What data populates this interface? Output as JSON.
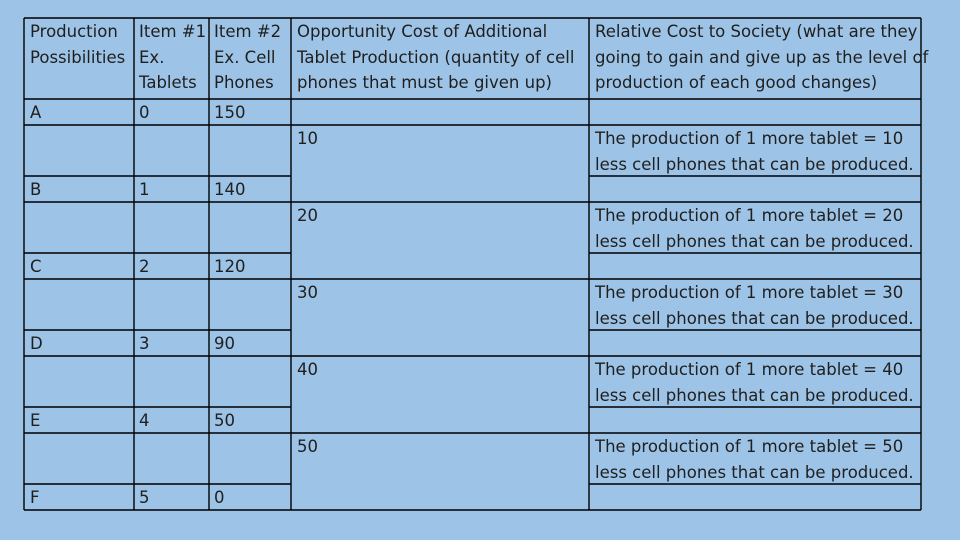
{
  "headers": {
    "production": "Production\nPossibilities",
    "item1": "Item #1\nEx.\nTablets",
    "item2": "Item #2\nEx. Cell\nPhones",
    "opportunity_cost": "Opportunity Cost of Additional\nTablet Production (quantity of cell\nphones that must be given up)",
    "relative_cost": "Relative Cost to Society (what are they\ngoing to gain and give up as the level of\nproduction of each good changes)"
  },
  "rows": [
    {
      "point": "A",
      "tablets": "0",
      "phones": "150"
    },
    {
      "point": "B",
      "tablets": "1",
      "phones": "140"
    },
    {
      "point": "C",
      "tablets": "2",
      "phones": "120"
    },
    {
      "point": "D",
      "tablets": "3",
      "phones": "90"
    },
    {
      "point": "E",
      "tablets": "4",
      "phones": "50"
    },
    {
      "point": "F",
      "tablets": "5",
      "phones": "0"
    }
  ],
  "transitions": [
    {
      "cost": "10",
      "relative": "The production of 1 more tablet = 10\nless cell phones that can be produced."
    },
    {
      "cost": "20",
      "relative": "The production of 1 more tablet = 20\nless cell phones that can be produced."
    },
    {
      "cost": "30",
      "relative": "The production of 1 more tablet = 30\nless cell phones that can be produced."
    },
    {
      "cost": "40",
      "relative": "The production of 1 more tablet = 40\nless cell phones that can be produced."
    },
    {
      "cost": "50",
      "relative": "The production of 1 more tablet = 50\nless cell phones that can be produced."
    }
  ]
}
